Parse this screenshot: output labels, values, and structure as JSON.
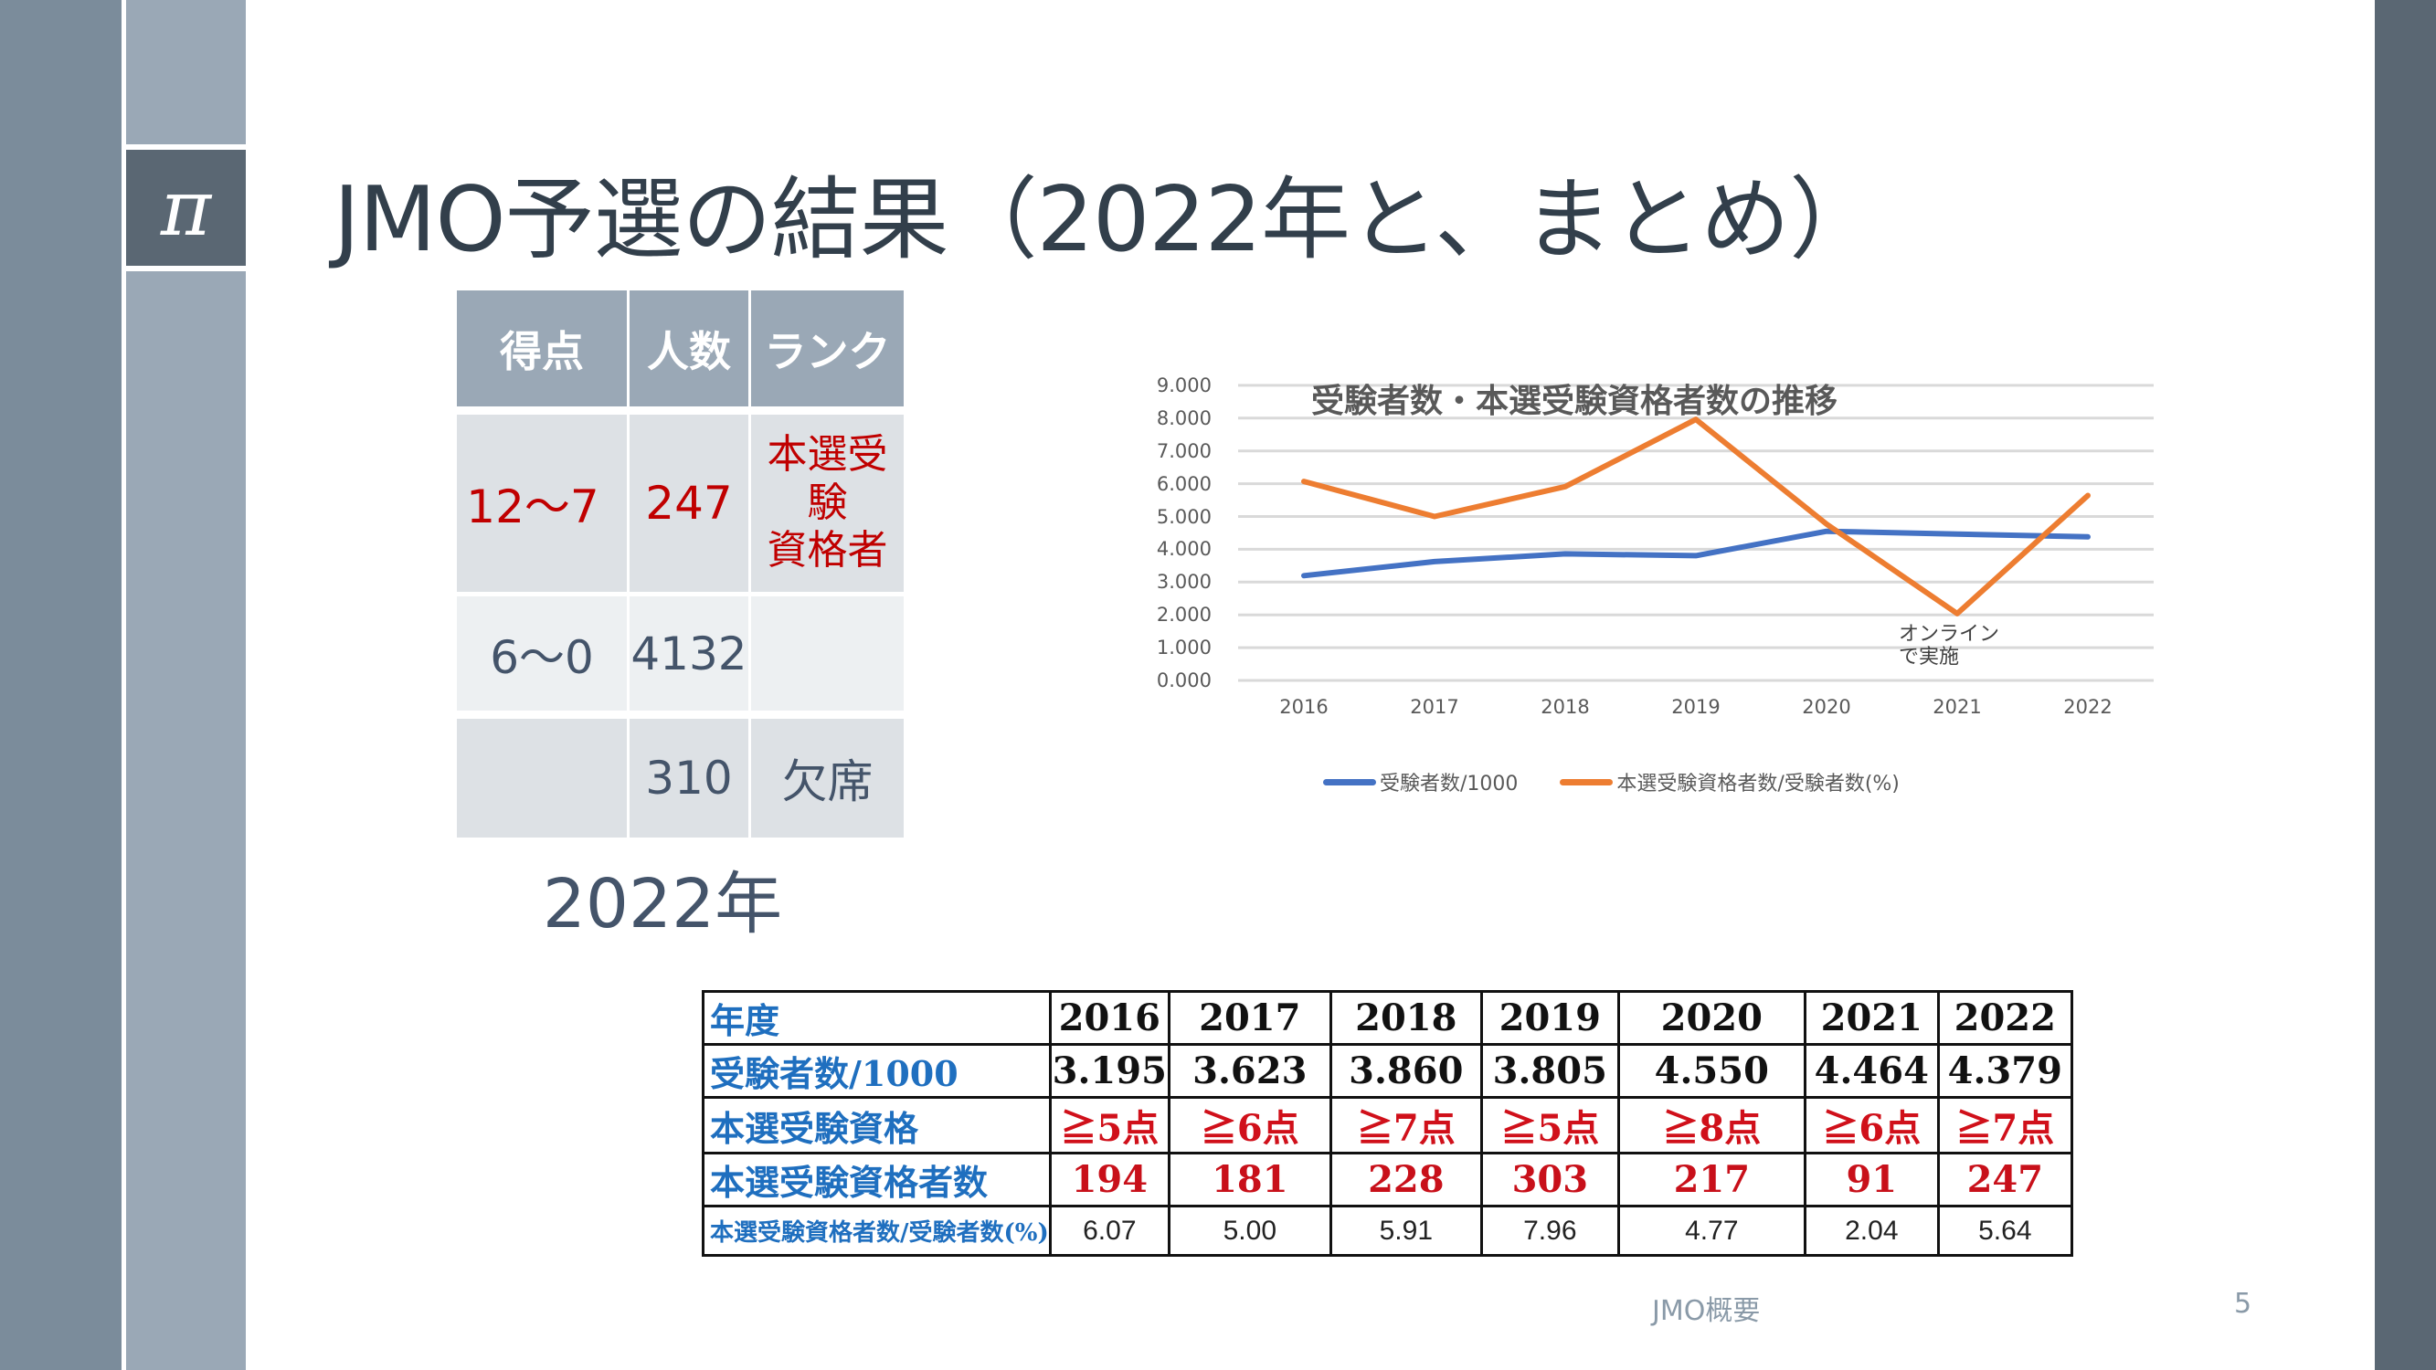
{
  "slide": {
    "title": "JMO予選の結果（2022年と、まとめ）",
    "logo_symbol": "π",
    "footer_text": "JMO概要",
    "page_number": "5"
  },
  "score_table": {
    "headers": [
      "得点",
      "人数",
      "ランク"
    ],
    "rows": [
      {
        "score": "12～7",
        "count": "247",
        "rank": "本選受験\n資格者"
      },
      {
        "score": "6～0",
        "count": "4132",
        "rank": ""
      },
      {
        "score": "",
        "count": "310",
        "rank": "欠席"
      }
    ],
    "caption": "2022年"
  },
  "chart_data": {
    "type": "line",
    "title": "受験者数・本選受験資格者数の推移",
    "categories": [
      "2016",
      "2017",
      "2018",
      "2019",
      "2020",
      "2021",
      "2022"
    ],
    "series": [
      {
        "name": "受験者数/1000",
        "color": "#4472c4",
        "values": [
          3.195,
          3.623,
          3.86,
          3.805,
          4.55,
          4.464,
          4.379
        ]
      },
      {
        "name": "本選受験資格者数/受験者数(%)",
        "color": "#ed7d31",
        "values": [
          6.07,
          5.0,
          5.91,
          7.96,
          4.77,
          2.04,
          5.64
        ]
      }
    ],
    "y_ticks": [
      "9.000",
      "8.000",
      "7.000",
      "6.000",
      "5.000",
      "4.000",
      "3.000",
      "2.000",
      "1.000",
      "0.000"
    ],
    "ylim": [
      0,
      9
    ],
    "xlabel": "",
    "ylabel": "",
    "grid": true,
    "legend_position": "bottom",
    "annotation": {
      "text": "オンライン\nで実施",
      "at": "2021"
    }
  },
  "data_table": {
    "row_labels": [
      "年度",
      "受験者数/1000",
      "本選受験資格",
      "本選受験資格者数",
      "本選受験資格者数/受験者数(%)"
    ],
    "years": [
      "2016",
      "2017",
      "2018",
      "2019",
      "2020",
      "2021",
      "2022"
    ],
    "examinees_per_1000": [
      "3.195",
      "3.623",
      "3.860",
      "3.805",
      "4.550",
      "4.464",
      "4.379"
    ],
    "qualification": [
      "≧5点",
      "≧6点",
      "≧7点",
      "≧5点",
      "≧8点",
      "≧6点",
      "≧7点"
    ],
    "qualified_count": [
      "194",
      "181",
      "228",
      "303",
      "217",
      "91",
      "247"
    ],
    "qualified_pct": [
      "6.07",
      "5.00",
      "5.91",
      "7.96",
      "4.77",
      "2.04",
      "5.64"
    ]
  },
  "colors": {
    "title": "#323f4b",
    "header_fill": "#9aa8b6",
    "accent_red": "#c00000",
    "series_blue": "#4472c4",
    "series_orange": "#ed7d31",
    "sidebar_dark": "#5a6773"
  }
}
